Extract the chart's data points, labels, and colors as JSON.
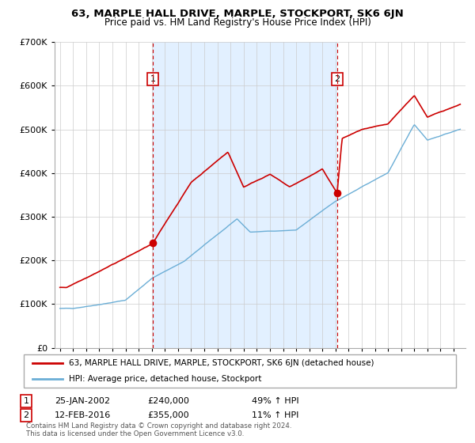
{
  "title": "63, MARPLE HALL DRIVE, MARPLE, STOCKPORT, SK6 6JN",
  "subtitle": "Price paid vs. HM Land Registry's House Price Index (HPI)",
  "legend_line1": "63, MARPLE HALL DRIVE, MARPLE, STOCKPORT, SK6 6JN (detached house)",
  "legend_line2": "HPI: Average price, detached house, Stockport",
  "annotation1_label": "1",
  "annotation1_date": "25-JAN-2002",
  "annotation1_price": "£240,000",
  "annotation1_hpi": "49% ↑ HPI",
  "annotation2_label": "2",
  "annotation2_date": "12-FEB-2016",
  "annotation2_price": "£355,000",
  "annotation2_hpi": "11% ↑ HPI",
  "footer": "Contains HM Land Registry data © Crown copyright and database right 2024.\nThis data is licensed under the Open Government Licence v3.0.",
  "hpi_color": "#6baed6",
  "hpi_shade_color": "#ddeeff",
  "price_color": "#cc0000",
  "marker_color": "#cc0000",
  "dashed_color": "#cc0000",
  "ylim_min": 0,
  "ylim_max": 700000,
  "year_start": 1995,
  "year_end": 2025,
  "sale1_year": 2002.07,
  "sale1_price": 240000,
  "sale2_year": 2016.12,
  "sale2_price": 355000,
  "background_color": "#ffffff",
  "grid_color": "#cccccc"
}
